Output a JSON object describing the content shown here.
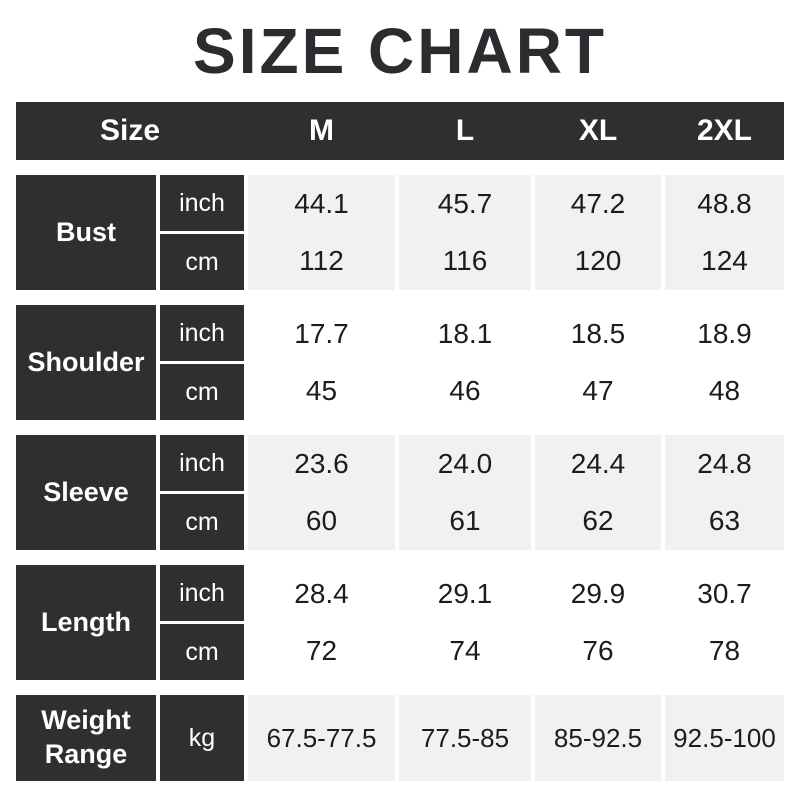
{
  "title": "SIZE CHART",
  "colors": {
    "dark_cell": "#2f2f2f",
    "shaded_row": "#f1f1f0",
    "header_text": "#ffffff",
    "value_text": "#1c1c1c",
    "title_text": "#2c2c30",
    "background": "#ffffff"
  },
  "header": {
    "size_label": "Size",
    "columns": [
      "M",
      "L",
      "XL",
      "2XL"
    ]
  },
  "sections": [
    {
      "label": "Bust",
      "units": [
        "inch",
        "cm"
      ],
      "cells": [
        {
          "inch": "44.1",
          "cm": "112"
        },
        {
          "inch": "45.7",
          "cm": "116"
        },
        {
          "inch": "47.2",
          "cm": "120"
        },
        {
          "inch": "48.8",
          "cm": "124"
        }
      ]
    },
    {
      "label": "Shoulder",
      "units": [
        "inch",
        "cm"
      ],
      "cells": [
        {
          "inch": "17.7",
          "cm": "45"
        },
        {
          "inch": "18.1",
          "cm": "46"
        },
        {
          "inch": "18.5",
          "cm": "47"
        },
        {
          "inch": "18.9",
          "cm": "48"
        }
      ]
    },
    {
      "label": "Sleeve",
      "units": [
        "inch",
        "cm"
      ],
      "cells": [
        {
          "inch": "23.6",
          "cm": "60"
        },
        {
          "inch": "24.0",
          "cm": "61"
        },
        {
          "inch": "24.4",
          "cm": "62"
        },
        {
          "inch": "24.8",
          "cm": "63"
        }
      ]
    },
    {
      "label": "Length",
      "units": [
        "inch",
        "cm"
      ],
      "cells": [
        {
          "inch": "28.4",
          "cm": "72"
        },
        {
          "inch": "29.1",
          "cm": "74"
        },
        {
          "inch": "29.9",
          "cm": "76"
        },
        {
          "inch": "30.7",
          "cm": "78"
        }
      ]
    }
  ],
  "weight": {
    "label": "Weight Range",
    "unit": "kg",
    "values": [
      "67.5-77.5",
      "77.5-85",
      "85-92.5",
      "92.5-100"
    ]
  },
  "chart_data": {
    "type": "table",
    "title": "SIZE CHART",
    "columns": [
      "Size",
      "M",
      "L",
      "XL",
      "2XL"
    ],
    "rows": [
      {
        "measure": "Bust",
        "unit": "inch",
        "M": 44.1,
        "L": 45.7,
        "XL": 47.2,
        "2XL": 48.8
      },
      {
        "measure": "Bust",
        "unit": "cm",
        "M": 112,
        "L": 116,
        "XL": 120,
        "2XL": 124
      },
      {
        "measure": "Shoulder",
        "unit": "inch",
        "M": 17.7,
        "L": 18.1,
        "XL": 18.5,
        "2XL": 18.9
      },
      {
        "measure": "Shoulder",
        "unit": "cm",
        "M": 45,
        "L": 46,
        "XL": 47,
        "2XL": 48
      },
      {
        "measure": "Sleeve",
        "unit": "inch",
        "M": 23.6,
        "L": 24.0,
        "XL": 24.4,
        "2XL": 24.8
      },
      {
        "measure": "Sleeve",
        "unit": "cm",
        "M": 60,
        "L": 61,
        "XL": 62,
        "2XL": 63
      },
      {
        "measure": "Length",
        "unit": "inch",
        "M": 28.4,
        "L": 29.1,
        "XL": 29.9,
        "2XL": 30.7
      },
      {
        "measure": "Length",
        "unit": "cm",
        "M": 72,
        "L": 74,
        "XL": 76,
        "2XL": 78
      },
      {
        "measure": "Weight Range",
        "unit": "kg",
        "M": "67.5-77.5",
        "L": "77.5-85",
        "XL": "85-92.5",
        "2XL": "92.5-100"
      }
    ]
  }
}
